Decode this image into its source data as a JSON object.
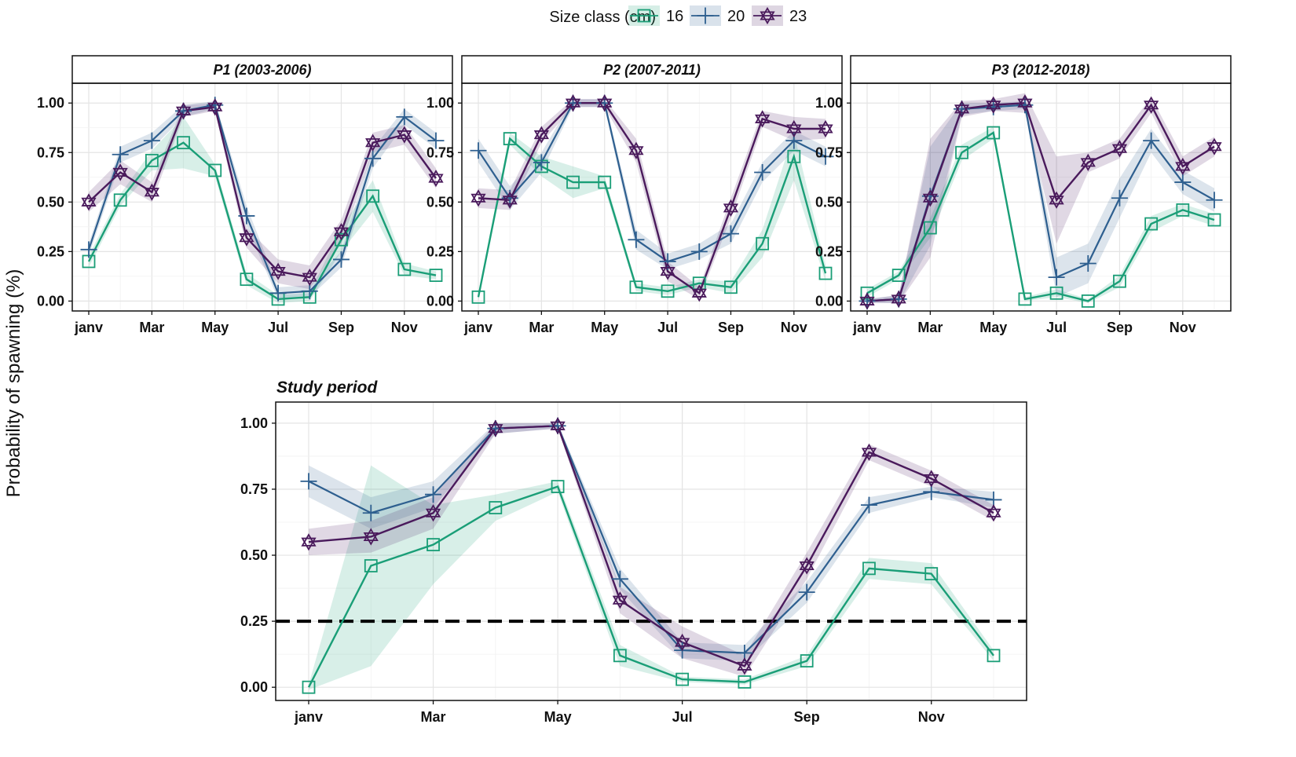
{
  "legend": {
    "title": "Size class (cm)",
    "labels": [
      "16",
      "20",
      "23"
    ]
  },
  "colors": {
    "16": "#1a9e77",
    "20": "#2e5f8f",
    "23": "#4a1a5c",
    "threshold": "#000000"
  },
  "y_axis_label": "Probability of spawning (%)",
  "chart_data": [
    {
      "type": "line",
      "title": "P1 (2003-2006)",
      "x_tick_labels": [
        "janv",
        "Mar",
        "May",
        "Jul",
        "Sep",
        "Nov"
      ],
      "y_tick_labels": [
        "0.00",
        "0.25",
        "0.50",
        "0.75",
        "1.00"
      ],
      "ylim": [
        -0.05,
        1.1
      ],
      "months": [
        1,
        2,
        3,
        4,
        5,
        6,
        7,
        8,
        9,
        10,
        11,
        12
      ],
      "series": [
        {
          "name": "16",
          "values": [
            0.2,
            0.51,
            0.71,
            0.8,
            0.66,
            0.11,
            0.01,
            0.02,
            0.31,
            0.53,
            0.16,
            0.13
          ],
          "ci_halfwidth": [
            0.03,
            0.03,
            0.05,
            0.13,
            0.03,
            0.03,
            0.02,
            0.02,
            0.06,
            0.08,
            0.03,
            0.02
          ]
        },
        {
          "name": "20",
          "values": [
            0.26,
            0.74,
            0.81,
            0.96,
            0.99,
            0.43,
            0.04,
            0.05,
            0.21,
            0.72,
            0.93,
            0.81
          ],
          "ci_halfwidth": [
            0.03,
            0.04,
            0.04,
            0.03,
            0.02,
            0.05,
            0.03,
            0.03,
            0.04,
            0.05,
            0.04,
            0.04
          ]
        },
        {
          "name": "23",
          "values": [
            0.5,
            0.65,
            0.55,
            0.96,
            0.98,
            0.32,
            0.15,
            0.12,
            0.35,
            0.8,
            0.84,
            0.62
          ],
          "ci_halfwidth": [
            0.05,
            0.06,
            0.05,
            0.03,
            0.02,
            0.05,
            0.06,
            0.06,
            0.06,
            0.05,
            0.05,
            0.05
          ]
        }
      ]
    },
    {
      "type": "line",
      "title": "P2 (2007-2011)",
      "x_tick_labels": [
        "janv",
        "Mar",
        "May",
        "Jul",
        "Sep",
        "Nov"
      ],
      "y_tick_labels": [
        "0.00",
        "0.25",
        "0.50",
        "0.75",
        "1.00"
      ],
      "ylim": [
        -0.05,
        1.1
      ],
      "months": [
        1,
        2,
        3,
        4,
        5,
        6,
        7,
        8,
        9,
        10,
        11,
        12
      ],
      "series": [
        {
          "name": "16",
          "values": [
            0.02,
            0.82,
            0.68,
            0.6,
            0.6,
            0.07,
            0.05,
            0.09,
            0.07,
            0.29,
            0.73,
            0.14
          ],
          "ci_halfwidth": [
            0.02,
            0.03,
            0.05,
            0.08,
            0.03,
            0.02,
            0.02,
            0.02,
            0.03,
            0.07,
            0.12,
            0.04
          ]
        },
        {
          "name": "20",
          "values": [
            0.76,
            0.52,
            0.7,
            1.0,
            1.0,
            0.31,
            0.2,
            0.25,
            0.34,
            0.65,
            0.81,
            0.73
          ],
          "ci_halfwidth": [
            0.06,
            0.06,
            0.05,
            0.02,
            0.02,
            0.05,
            0.04,
            0.04,
            0.05,
            0.05,
            0.05,
            0.05
          ]
        },
        {
          "name": "23",
          "values": [
            0.52,
            0.51,
            0.84,
            1.0,
            1.0,
            0.76,
            0.15,
            0.04,
            0.47,
            0.92,
            0.87,
            0.87
          ],
          "ci_halfwidth": [
            0.05,
            0.05,
            0.04,
            0.02,
            0.02,
            0.06,
            0.05,
            0.03,
            0.05,
            0.04,
            0.06,
            0.05
          ]
        }
      ]
    },
    {
      "type": "line",
      "title": "P3 (2012-2018)",
      "x_tick_labels": [
        "janv",
        "Mar",
        "May",
        "Jul",
        "Sep",
        "Nov"
      ],
      "y_tick_labels": [
        "0.00",
        "0.25",
        "0.50",
        "0.75",
        "1.00"
      ],
      "ylim": [
        -0.05,
        1.1
      ],
      "months": [
        1,
        2,
        3,
        4,
        5,
        6,
        7,
        8,
        9,
        10,
        11,
        12
      ],
      "series": [
        {
          "name": "16",
          "values": [
            0.04,
            0.13,
            0.37,
            0.75,
            0.85,
            0.01,
            0.04,
            0.0,
            0.1,
            0.39,
            0.46,
            0.41
          ],
          "ci_halfwidth": [
            0.02,
            0.02,
            0.05,
            0.04,
            0.03,
            0.01,
            0.02,
            0.01,
            0.03,
            0.04,
            0.03,
            0.03
          ]
        },
        {
          "name": "20",
          "values": [
            0.0,
            0.01,
            0.53,
            0.97,
            0.98,
            0.99,
            0.12,
            0.19,
            0.52,
            0.81,
            0.6,
            0.51
          ],
          "ci_halfwidth": [
            0.01,
            0.02,
            0.25,
            0.03,
            0.02,
            0.02,
            0.1,
            0.1,
            0.1,
            0.06,
            0.06,
            0.06
          ]
        },
        {
          "name": "23",
          "values": [
            0.0,
            0.01,
            0.52,
            0.97,
            0.99,
            1.0,
            0.51,
            0.7,
            0.77,
            0.99,
            0.68,
            0.78
          ],
          "ci_halfwidth": [
            0.01,
            0.02,
            0.3,
            0.04,
            0.03,
            0.05,
            0.22,
            0.05,
            0.05,
            0.04,
            0.05,
            0.05
          ]
        }
      ]
    },
    {
      "type": "line",
      "title": "Study period",
      "x_tick_labels": [
        "janv",
        "Mar",
        "May",
        "Jul",
        "Sep",
        "Nov"
      ],
      "y_tick_labels": [
        "0.00",
        "0.25",
        "0.50",
        "0.75",
        "1.00"
      ],
      "ylim": [
        -0.05,
        1.08
      ],
      "threshold": 0.25,
      "months": [
        1,
        2,
        3,
        4,
        5,
        6,
        7,
        8,
        9,
        10,
        11,
        12
      ],
      "series": [
        {
          "name": "16",
          "values": [
            0.0,
            0.46,
            0.54,
            0.68,
            0.76,
            0.12,
            0.03,
            0.02,
            0.1,
            0.45,
            0.43,
            0.12
          ],
          "ci_halfwidth": [
            0.01,
            0.38,
            0.15,
            0.05,
            0.02,
            0.04,
            0.01,
            0.01,
            0.02,
            0.04,
            0.04,
            0.02
          ]
        },
        {
          "name": "20",
          "values": [
            0.78,
            0.66,
            0.73,
            0.98,
            0.99,
            0.41,
            0.14,
            0.13,
            0.36,
            0.69,
            0.74,
            0.71
          ],
          "ci_halfwidth": [
            0.06,
            0.06,
            0.05,
            0.02,
            0.01,
            0.04,
            0.03,
            0.03,
            0.04,
            0.03,
            0.02,
            0.03
          ]
        },
        {
          "name": "23",
          "values": [
            0.55,
            0.57,
            0.66,
            0.98,
            0.99,
            0.33,
            0.17,
            0.08,
            0.46,
            0.89,
            0.79,
            0.66
          ],
          "ci_halfwidth": [
            0.05,
            0.06,
            0.06,
            0.02,
            0.01,
            0.05,
            0.06,
            0.04,
            0.05,
            0.03,
            0.03,
            0.03
          ]
        }
      ]
    }
  ]
}
